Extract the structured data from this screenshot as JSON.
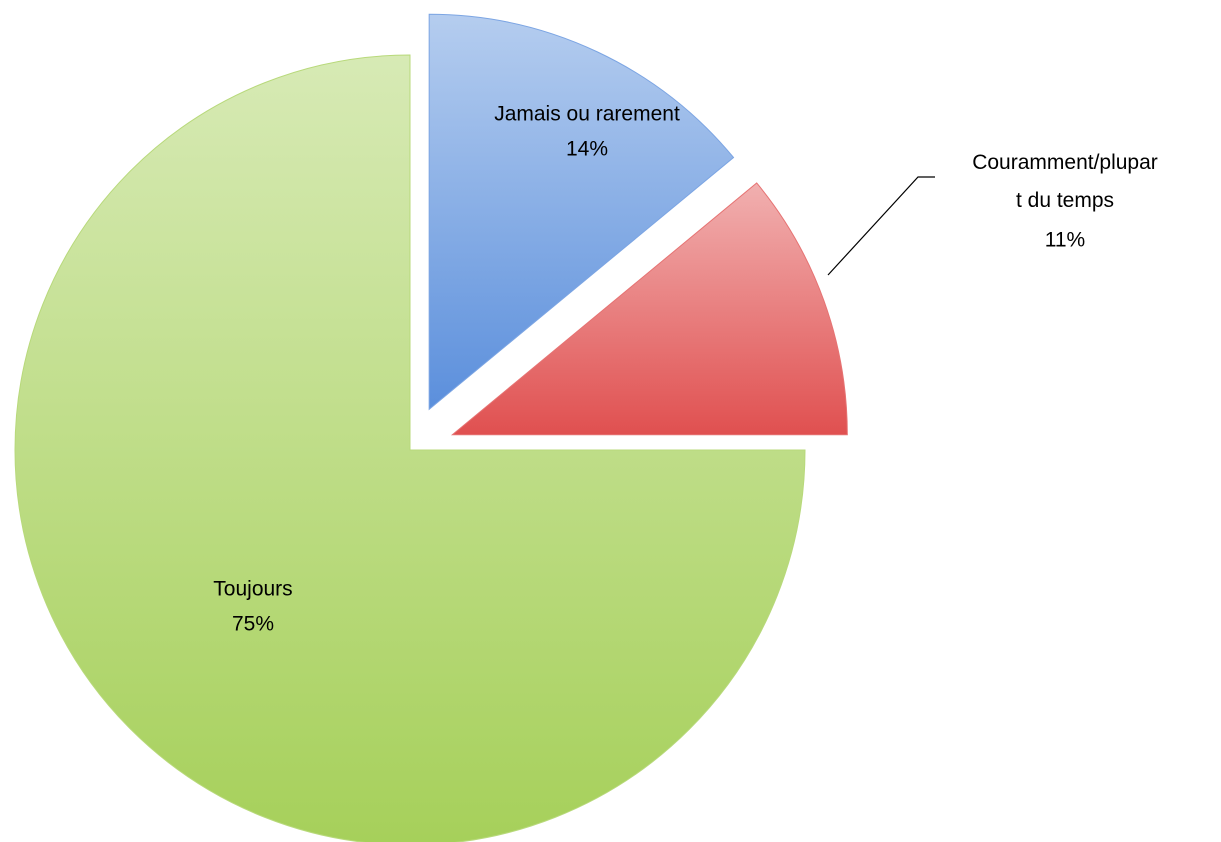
{
  "chart_data": {
    "type": "pie",
    "categories": [
      "Jamais ou rarement",
      "Couramment/plupart du temps",
      "Toujours"
    ],
    "values": [
      14,
      11,
      75
    ],
    "value_labels": [
      "14%",
      "11%",
      "75%"
    ],
    "colors": [
      "#5b8fdc",
      "#e05050",
      "#a6d05a"
    ]
  }
}
